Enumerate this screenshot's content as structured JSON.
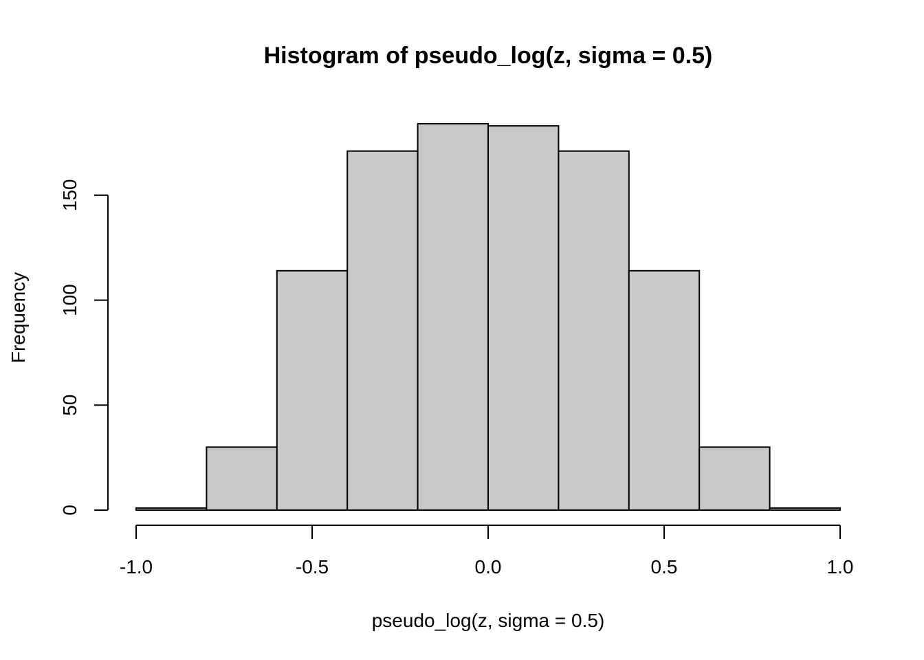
{
  "chart_data": {
    "type": "bar",
    "title": "Histogram of pseudo_log(z, sigma = 0.5)",
    "xlabel": "pseudo_log(z, sigma = 0.5)",
    "ylabel": "Frequency",
    "bins": [
      {
        "x0": -1.0,
        "x1": -0.8,
        "count": 1
      },
      {
        "x0": -0.8,
        "x1": -0.6,
        "count": 30
      },
      {
        "x0": -0.6,
        "x1": -0.4,
        "count": 114
      },
      {
        "x0": -0.4,
        "x1": -0.2,
        "count": 171
      },
      {
        "x0": -0.2,
        "x1": 0.0,
        "count": 184
      },
      {
        "x0": 0.0,
        "x1": 0.2,
        "count": 183
      },
      {
        "x0": 0.2,
        "x1": 0.4,
        "count": 171
      },
      {
        "x0": 0.4,
        "x1": 0.6,
        "count": 114
      },
      {
        "x0": 0.6,
        "x1": 0.8,
        "count": 30
      },
      {
        "x0": 0.8,
        "x1": 1.0,
        "count": 1
      }
    ],
    "x_ticks": [
      -1.0,
      -0.5,
      0.0,
      0.5,
      1.0
    ],
    "x_tick_labels": [
      "-1.0",
      "-0.5",
      "0.0",
      "0.5",
      "1.0"
    ],
    "y_ticks": [
      0,
      50,
      100,
      150
    ],
    "y_tick_labels": [
      "0",
      "50",
      "100",
      "150"
    ],
    "xlim": [
      -1.0,
      1.0
    ],
    "ylim": [
      0,
      184
    ],
    "grid": false,
    "bar_color": "#c9c9c9",
    "edge_color": "#000000"
  }
}
